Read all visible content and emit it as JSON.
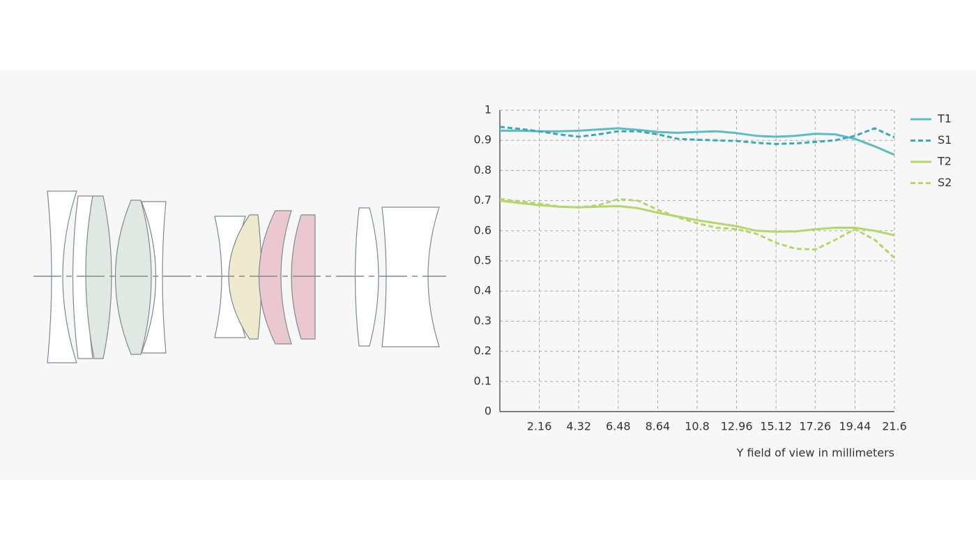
{
  "chart_data": {
    "type": "line",
    "xlabel": "Y field of view in millimeters",
    "x": [
      0,
      1.08,
      2.16,
      3.24,
      4.32,
      5.4,
      6.48,
      7.56,
      8.64,
      9.72,
      10.8,
      11.88,
      12.96,
      14.04,
      15.12,
      16.2,
      17.28,
      18.36,
      19.44,
      20.52,
      21.6
    ],
    "series": [
      {
        "name": "T1",
        "color": "#5bbcc4",
        "linestyle": "solid",
        "values": [
          0.932,
          0.932,
          0.93,
          0.93,
          0.932,
          0.936,
          0.94,
          0.935,
          0.928,
          0.925,
          0.928,
          0.93,
          0.924,
          0.915,
          0.912,
          0.915,
          0.922,
          0.92,
          0.905,
          0.88,
          0.852
        ]
      },
      {
        "name": "S1",
        "color": "#3aa9b7",
        "linestyle": "dashed",
        "values": [
          0.945,
          0.938,
          0.93,
          0.92,
          0.912,
          0.92,
          0.93,
          0.93,
          0.92,
          0.905,
          0.902,
          0.9,
          0.898,
          0.892,
          0.888,
          0.89,
          0.895,
          0.9,
          0.915,
          0.94,
          0.91
        ]
      },
      {
        "name": "T2",
        "color": "#b5d66a",
        "linestyle": "solid",
        "values": [
          0.7,
          0.692,
          0.685,
          0.68,
          0.678,
          0.68,
          0.682,
          0.675,
          0.66,
          0.648,
          0.635,
          0.625,
          0.615,
          0.6,
          0.597,
          0.598,
          0.605,
          0.61,
          0.61,
          0.6,
          0.585
        ]
      },
      {
        "name": "S2",
        "color": "#b5d66a",
        "linestyle": "dashed",
        "values": [
          0.705,
          0.698,
          0.69,
          0.68,
          0.677,
          0.685,
          0.705,
          0.7,
          0.67,
          0.645,
          0.625,
          0.61,
          0.605,
          0.59,
          0.56,
          0.54,
          0.538,
          0.57,
          0.605,
          0.57,
          0.51
        ]
      }
    ],
    "xlim": [
      0,
      21.6
    ],
    "ylim": [
      0,
      1
    ],
    "xticks": [
      2.16,
      4.32,
      6.48,
      8.64,
      10.8,
      12.96,
      15.12,
      17.26,
      19.44,
      21.6
    ],
    "yticks": [
      0,
      0.1,
      0.2,
      0.3,
      0.4,
      0.5,
      0.6,
      0.7,
      0.8,
      0.9,
      1
    ],
    "grid": true,
    "legend": "right"
  }
}
